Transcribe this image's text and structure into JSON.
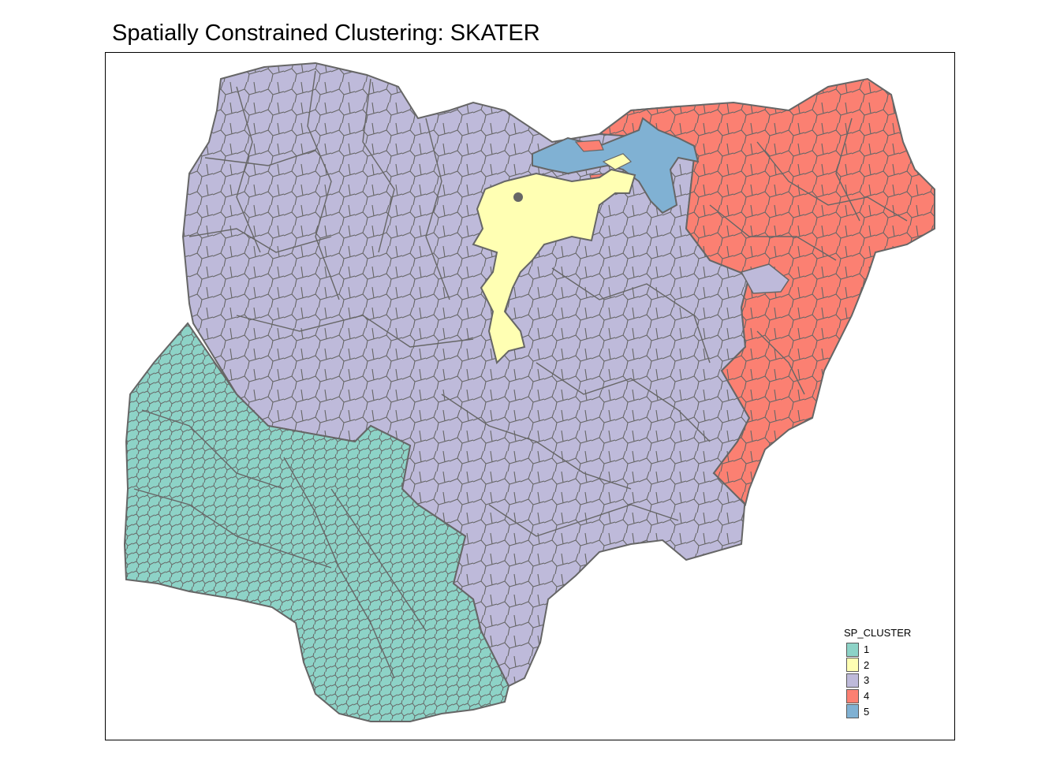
{
  "title": "Spatially Constrained Clustering: SKATER",
  "legend": {
    "title": "SP_CLUSTER",
    "items": [
      {
        "label": "1",
        "color": "#8DD3C7"
      },
      {
        "label": "2",
        "color": "#FFFFB3"
      },
      {
        "label": "3",
        "color": "#BEBADA"
      },
      {
        "label": "4",
        "color": "#FB8072"
      },
      {
        "label": "5",
        "color": "#80B1D3"
      }
    ]
  },
  "map": {
    "border_color": "#666666",
    "clusters": [
      "1",
      "2",
      "3",
      "4",
      "5"
    ]
  }
}
